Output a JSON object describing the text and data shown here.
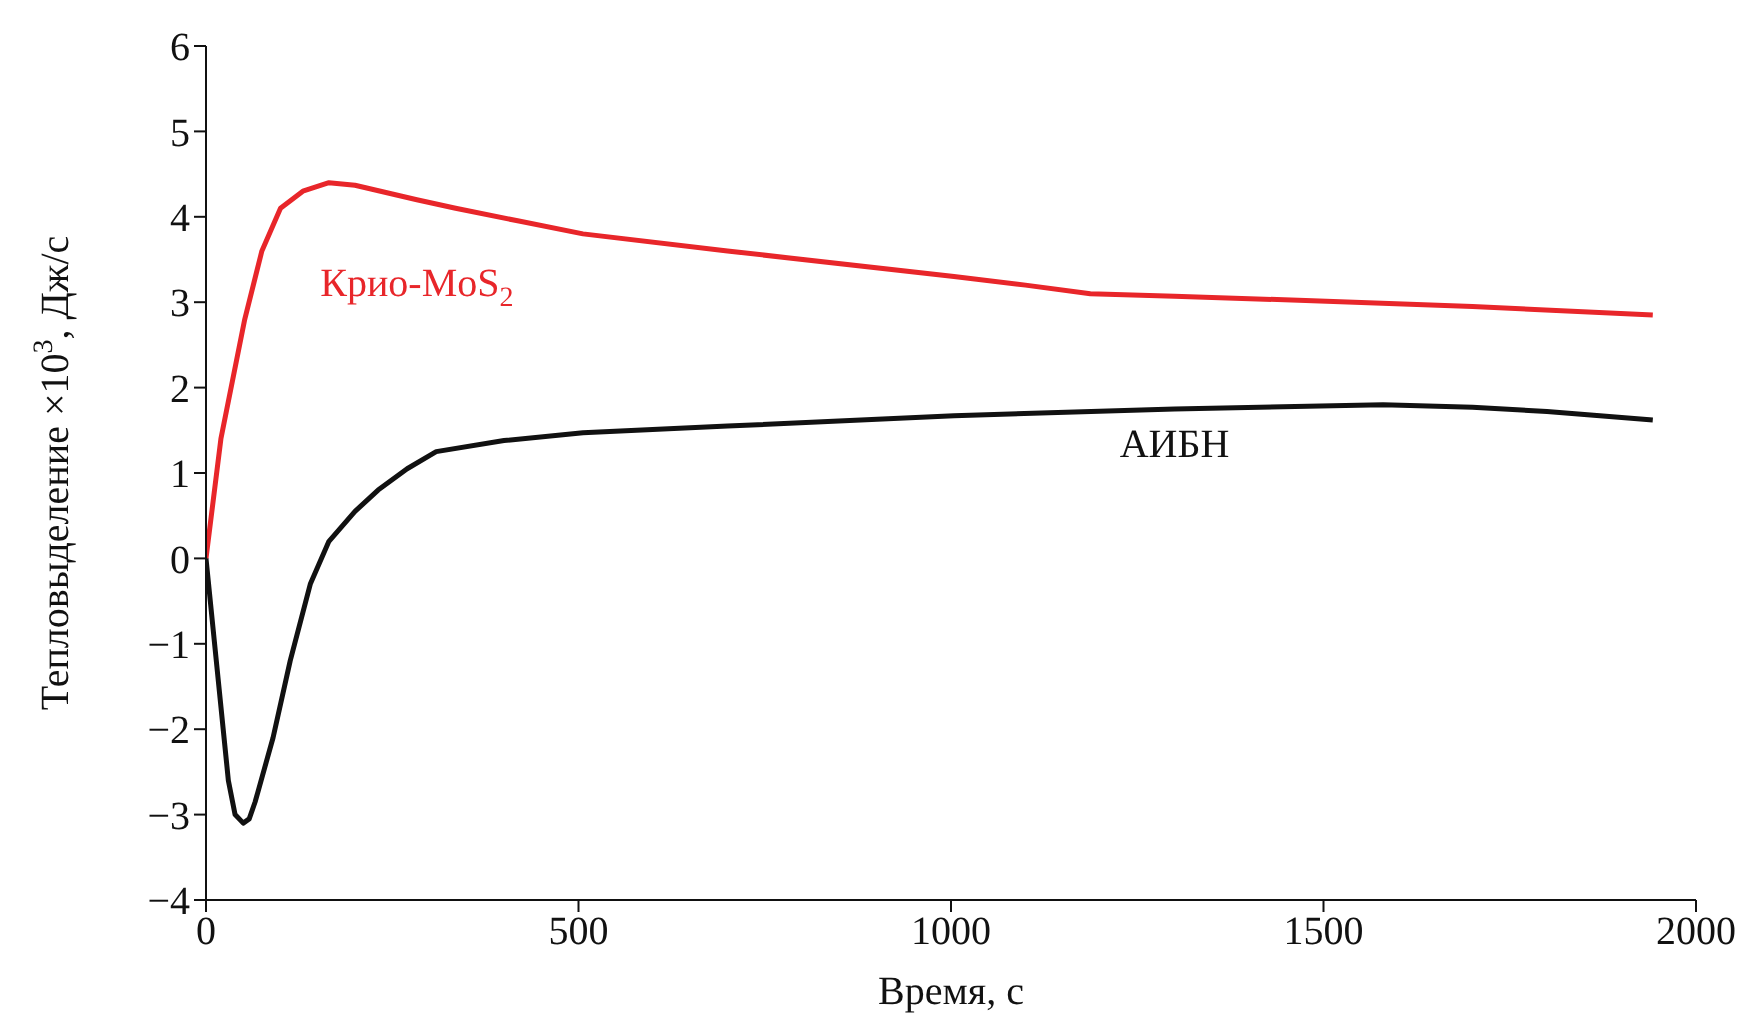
{
  "chart_data": {
    "type": "line",
    "xlabel": "Время, с",
    "ylabel": "Тепловыделение ×10$^{3}$, Дж/с",
    "xlim": [
      0,
      2000
    ],
    "xticks": [
      0,
      500,
      1000,
      1500,
      2000
    ],
    "ylim": [
      -4,
      6
    ],
    "yticks": [
      -4,
      -3,
      -2,
      -1,
      0,
      1,
      2,
      3,
      4,
      5,
      6
    ],
    "grid": false,
    "legend": false,
    "marker": "none",
    "line_style": "solid",
    "series": [
      {
        "name": "Крио-MoS$_{2}$",
        "color": "#e8262a",
        "x": [
          0,
          20,
          52,
          75,
          100,
          130,
          165,
          200,
          283,
          335,
          420,
          506,
          700,
          1004,
          1100,
          1187,
          1300,
          1476,
          1700,
          1942
        ],
        "values": [
          0,
          1.4,
          2.8,
          3.6,
          4.1,
          4.3,
          4.4,
          4.37,
          4.2,
          4.1,
          3.95,
          3.8,
          3.6,
          3.3,
          3.2,
          3.1,
          3.07,
          3.02,
          2.95,
          2.85
        ]
      },
      {
        "name": "АИБН",
        "color": "#111111",
        "x": [
          0,
          15,
          30,
          39,
          50,
          58,
          66,
          90,
          113,
          140,
          165,
          200,
          231,
          270,
          309,
          400,
          506,
          700,
          1004,
          1300,
          1580,
          1700,
          1800,
          1942
        ],
        "values": [
          0,
          -1.3,
          -2.6,
          -3.0,
          -3.1,
          -3.05,
          -2.85,
          -2.1,
          -1.2,
          -0.3,
          0.2,
          0.55,
          0.8,
          1.05,
          1.25,
          1.38,
          1.47,
          1.55,
          1.67,
          1.75,
          1.8,
          1.77,
          1.72,
          1.62
        ]
      }
    ]
  }
}
